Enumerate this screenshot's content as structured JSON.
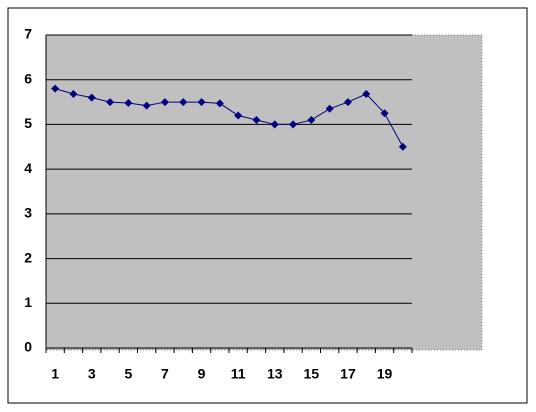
{
  "chart_data": {
    "type": "line",
    "categories": [
      "1",
      null,
      "3",
      null,
      "5",
      null,
      "7",
      null,
      "9",
      null,
      "11",
      null,
      "13",
      null,
      "15",
      null,
      "17",
      null,
      "19",
      null
    ],
    "values": [
      5.8,
      5.68,
      5.6,
      5.5,
      5.48,
      5.42,
      5.5,
      5.5,
      5.5,
      5.47,
      5.2,
      5.1,
      5.0,
      5.0,
      5.1,
      5.35,
      5.5,
      5.68,
      5.25,
      4.5
    ],
    "color": "#000080",
    "ylim": [
      0,
      7
    ],
    "yticks": [
      0,
      1,
      2,
      3,
      4,
      5,
      6,
      7
    ],
    "grid": true
  }
}
